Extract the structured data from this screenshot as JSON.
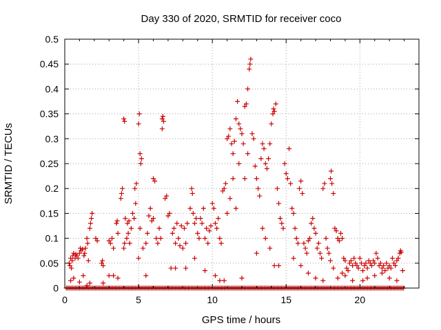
{
  "chart_data": {
    "type": "scatter",
    "title": "Day 330 of 2020, SRMTID for receiver coco",
    "xlabel": "GPS time / hours",
    "ylabel": "SRMTID / TECUs",
    "xlim": [
      0,
      24
    ],
    "ylim": [
      0,
      0.5
    ],
    "x_ticks": [
      0,
      5,
      10,
      15,
      20
    ],
    "y_ticks": [
      0,
      0.05,
      0.1,
      0.15,
      0.2,
      0.25,
      0.3,
      0.35,
      0.4,
      0.45,
      0.5
    ],
    "y_tick_labels": [
      "0",
      "0.05",
      "0.1",
      "0.15",
      "0.2",
      "0.25",
      "0.3",
      "0.35",
      "0.4",
      "0.45",
      "0.5"
    ],
    "grid": true,
    "marker": "+",
    "color": "#cc0000",
    "baseline": {
      "y": 0.0,
      "x_start": 0.1,
      "x_end": 23.0,
      "step": 0.09
    },
    "points": [
      [
        0.3,
        0.05
      ],
      [
        0.35,
        0.045
      ],
      [
        0.4,
        0.06
      ],
      [
        0.45,
        0.04
      ],
      [
        0.5,
        0.055
      ],
      [
        0.55,
        0.065
      ],
      [
        0.6,
        0.07
      ],
      [
        0.7,
        0.06
      ],
      [
        0.75,
        0.068
      ],
      [
        0.8,
        0.065
      ],
      [
        0.9,
        0.06
      ],
      [
        1.0,
        0.07
      ],
      [
        1.05,
        0.08
      ],
      [
        1.1,
        0.075
      ],
      [
        1.2,
        0.078
      ],
      [
        1.3,
        0.065
      ],
      [
        1.35,
        0.07
      ],
      [
        1.4,
        0.08
      ],
      [
        1.5,
        0.1
      ],
      [
        1.55,
        0.09
      ],
      [
        1.6,
        0.055
      ],
      [
        1.7,
        0.12
      ],
      [
        1.75,
        0.13
      ],
      [
        1.8,
        0.14
      ],
      [
        1.85,
        0.15
      ],
      [
        0.4,
        0.015
      ],
      [
        0.6,
        0.02
      ],
      [
        1.0,
        0.012
      ],
      [
        1.25,
        0.025
      ],
      [
        1.5,
        0.005
      ],
      [
        1.7,
        0.01
      ],
      [
        2.1,
        0.1
      ],
      [
        2.2,
        0.095
      ],
      [
        2.5,
        0.05
      ],
      [
        2.55,
        0.055
      ],
      [
        2.6,
        0.045
      ],
      [
        3.0,
        0.095
      ],
      [
        3.1,
        0.09
      ],
      [
        3.2,
        0.1
      ],
      [
        3.3,
        0.08
      ],
      [
        3.5,
        0.13
      ],
      [
        3.55,
        0.135
      ],
      [
        3.6,
        0.11
      ],
      [
        3.8,
        0.18
      ],
      [
        3.85,
        0.19
      ],
      [
        3.9,
        0.2
      ],
      [
        4.0,
        0.08
      ],
      [
        4.05,
        0.09
      ],
      [
        4.1,
        0.14
      ],
      [
        4.2,
        0.1
      ],
      [
        4.25,
        0.13
      ],
      [
        4.3,
        0.11
      ],
      [
        4.35,
        0.135
      ],
      [
        4.4,
        0.09
      ],
      [
        4.5,
        0.12
      ],
      [
        4.6,
        0.15
      ],
      [
        4.7,
        0.14
      ],
      [
        4.75,
        0.2
      ],
      [
        4.8,
        0.17
      ],
      [
        4.85,
        0.21
      ],
      [
        3.0,
        0.025
      ],
      [
        3.3,
        0.025
      ],
      [
        3.6,
        0.02
      ],
      [
        4.0,
        0.34
      ],
      [
        4.05,
        0.335
      ],
      [
        2.6,
        0.01
      ],
      [
        5.0,
        0.33
      ],
      [
        5.05,
        0.35
      ],
      [
        5.1,
        0.27
      ],
      [
        5.15,
        0.25
      ],
      [
        5.2,
        0.26
      ],
      [
        5.0,
        0.06
      ],
      [
        5.1,
        0.12
      ],
      [
        5.3,
        0.08
      ],
      [
        5.5,
        0.09
      ],
      [
        5.6,
        0.11
      ],
      [
        5.7,
        0.145
      ],
      [
        5.8,
        0.16
      ],
      [
        5.9,
        0.135
      ],
      [
        6.0,
        0.22
      ],
      [
        6.1,
        0.215
      ],
      [
        6.2,
        0.1
      ],
      [
        6.3,
        0.09
      ],
      [
        6.4,
        0.12
      ],
      [
        6.5,
        0.1
      ],
      [
        6.6,
        0.34
      ],
      [
        6.65,
        0.345
      ],
      [
        6.7,
        0.335
      ],
      [
        6.6,
        0.32
      ],
      [
        6.8,
        0.18
      ],
      [
        6.9,
        0.185
      ],
      [
        7.0,
        0.145
      ],
      [
        7.1,
        0.15
      ],
      [
        7.3,
        0.11
      ],
      [
        7.4,
        0.12
      ],
      [
        7.5,
        0.09
      ],
      [
        7.6,
        0.13
      ],
      [
        7.7,
        0.1
      ],
      [
        7.8,
        0.085
      ],
      [
        7.9,
        0.125
      ],
      [
        5.5,
        0.025
      ],
      [
        6.0,
        0.14
      ],
      [
        7.2,
        0.04
      ],
      [
        7.5,
        0.04
      ],
      [
        8.0,
        0.08
      ],
      [
        8.1,
        0.12
      ],
      [
        8.2,
        0.09
      ],
      [
        8.3,
        0.13
      ],
      [
        8.5,
        0.16
      ],
      [
        8.6,
        0.2
      ],
      [
        8.65,
        0.19
      ],
      [
        8.7,
        0.15
      ],
      [
        8.8,
        0.13
      ],
      [
        8.9,
        0.14
      ],
      [
        9.0,
        0.11
      ],
      [
        9.1,
        0.1
      ],
      [
        9.2,
        0.14
      ],
      [
        9.3,
        0.13
      ],
      [
        9.4,
        0.16
      ],
      [
        9.5,
        0.1
      ],
      [
        9.6,
        0.12
      ],
      [
        9.7,
        0.09
      ],
      [
        9.8,
        0.115
      ],
      [
        9.9,
        0.125
      ],
      [
        10.0,
        0.17
      ],
      [
        10.1,
        0.16
      ],
      [
        10.2,
        0.13
      ],
      [
        10.3,
        0.12
      ],
      [
        10.4,
        0.14
      ],
      [
        10.5,
        0.1
      ],
      [
        10.6,
        0.09
      ],
      [
        10.7,
        0.195
      ],
      [
        10.8,
        0.2
      ],
      [
        10.9,
        0.21
      ],
      [
        8.2,
        0.04
      ],
      [
        8.8,
        0.06
      ],
      [
        9.5,
        0.035
      ],
      [
        10.2,
        0.025
      ],
      [
        10.5,
        0.015
      ],
      [
        10.8,
        0.015
      ],
      [
        11.0,
        0.3
      ],
      [
        11.1,
        0.305
      ],
      [
        11.2,
        0.32
      ],
      [
        11.3,
        0.29
      ],
      [
        11.4,
        0.27
      ],
      [
        11.5,
        0.295
      ],
      [
        11.6,
        0.34
      ],
      [
        11.7,
        0.375
      ],
      [
        11.8,
        0.33
      ],
      [
        11.9,
        0.32
      ],
      [
        12.0,
        0.31
      ],
      [
        12.1,
        0.29
      ],
      [
        12.2,
        0.365
      ],
      [
        12.3,
        0.37
      ],
      [
        12.4,
        0.4
      ],
      [
        12.5,
        0.44
      ],
      [
        12.55,
        0.45
      ],
      [
        12.6,
        0.46
      ],
      [
        12.7,
        0.31
      ],
      [
        12.8,
        0.3
      ],
      [
        12.9,
        0.245
      ],
      [
        13.0,
        0.22
      ],
      [
        13.1,
        0.2
      ],
      [
        13.2,
        0.185
      ],
      [
        13.3,
        0.26
      ],
      [
        13.4,
        0.29
      ],
      [
        13.5,
        0.28
      ],
      [
        13.6,
        0.25
      ],
      [
        13.7,
        0.24
      ],
      [
        13.8,
        0.26
      ],
      [
        13.9,
        0.29
      ],
      [
        14.0,
        0.33
      ],
      [
        14.1,
        0.35
      ],
      [
        14.15,
        0.36
      ],
      [
        14.2,
        0.355
      ],
      [
        14.3,
        0.37
      ],
      [
        11.0,
        0.15
      ],
      [
        11.2,
        0.18
      ],
      [
        11.4,
        0.22
      ],
      [
        11.6,
        0.16
      ],
      [
        11.8,
        0.25
      ],
      [
        12.0,
        0.02
      ],
      [
        12.2,
        0.22
      ],
      [
        12.4,
        0.27
      ],
      [
        13.0,
        0.07
      ],
      [
        13.4,
        0.12
      ],
      [
        13.6,
        0.1
      ],
      [
        13.9,
        0.08
      ],
      [
        14.2,
        0.045
      ],
      [
        14.4,
        0.2
      ],
      [
        14.5,
        0.17
      ],
      [
        14.6,
        0.14
      ],
      [
        14.7,
        0.13
      ],
      [
        14.8,
        0.12
      ],
      [
        14.9,
        0.25
      ],
      [
        15.0,
        0.23
      ],
      [
        15.1,
        0.22
      ],
      [
        15.2,
        0.28
      ],
      [
        15.3,
        0.21
      ],
      [
        15.4,
        0.16
      ],
      [
        15.5,
        0.15
      ],
      [
        15.6,
        0.12
      ],
      [
        15.7,
        0.1
      ],
      [
        15.8,
        0.09
      ],
      [
        15.9,
        0.2
      ],
      [
        16.0,
        0.215
      ],
      [
        16.1,
        0.19
      ],
      [
        16.2,
        0.09
      ],
      [
        16.3,
        0.08
      ],
      [
        16.4,
        0.07
      ],
      [
        16.5,
        0.095
      ],
      [
        16.6,
        0.1
      ],
      [
        16.7,
        0.13
      ],
      [
        16.8,
        0.14
      ],
      [
        16.9,
        0.12
      ],
      [
        17.0,
        0.11
      ],
      [
        17.1,
        0.08
      ],
      [
        17.2,
        0.09
      ],
      [
        17.3,
        0.07
      ],
      [
        17.4,
        0.06
      ],
      [
        17.5,
        0.2
      ],
      [
        17.6,
        0.21
      ],
      [
        17.7,
        0.1
      ],
      [
        17.8,
        0.08
      ],
      [
        17.9,
        0.07
      ],
      [
        14.5,
        0.045
      ],
      [
        15.5,
        0.06
      ],
      [
        16.0,
        0.045
      ],
      [
        16.5,
        0.03
      ],
      [
        17.0,
        0.02
      ],
      [
        17.5,
        0.015
      ],
      [
        18.0,
        0.22
      ],
      [
        18.05,
        0.235
      ],
      [
        18.1,
        0.21
      ],
      [
        18.2,
        0.19
      ],
      [
        18.3,
        0.12
      ],
      [
        18.4,
        0.115
      ],
      [
        18.5,
        0.1
      ],
      [
        18.6,
        0.095
      ],
      [
        18.7,
        0.11
      ],
      [
        18.8,
        0.1
      ],
      [
        18.9,
        0.06
      ],
      [
        19.0,
        0.055
      ],
      [
        19.1,
        0.04
      ],
      [
        19.2,
        0.035
      ],
      [
        19.3,
        0.05
      ],
      [
        19.4,
        0.055
      ],
      [
        19.5,
        0.045
      ],
      [
        19.6,
        0.06
      ],
      [
        19.7,
        0.05
      ],
      [
        19.8,
        0.045
      ],
      [
        19.9,
        0.04
      ],
      [
        18.0,
        0.055
      ],
      [
        18.2,
        0.04
      ],
      [
        18.5,
        0.02
      ],
      [
        18.8,
        0.03
      ],
      [
        19.0,
        0.025
      ],
      [
        19.5,
        0.015
      ],
      [
        20.0,
        0.06
      ],
      [
        20.1,
        0.05
      ],
      [
        20.2,
        0.035
      ],
      [
        20.3,
        0.045
      ],
      [
        20.4,
        0.05
      ],
      [
        20.5,
        0.04
      ],
      [
        20.6,
        0.055
      ],
      [
        20.7,
        0.05
      ],
      [
        20.8,
        0.045
      ],
      [
        20.9,
        0.055
      ],
      [
        21.0,
        0.05
      ],
      [
        21.1,
        0.07
      ],
      [
        21.2,
        0.06
      ],
      [
        21.3,
        0.045
      ],
      [
        21.4,
        0.05
      ],
      [
        21.5,
        0.04
      ],
      [
        21.6,
        0.045
      ],
      [
        21.7,
        0.035
      ],
      [
        21.8,
        0.05
      ],
      [
        21.9,
        0.04
      ],
      [
        22.0,
        0.045
      ],
      [
        22.1,
        0.04
      ],
      [
        22.2,
        0.06
      ],
      [
        22.3,
        0.05
      ],
      [
        22.4,
        0.045
      ],
      [
        22.5,
        0.055
      ],
      [
        22.6,
        0.06
      ],
      [
        22.7,
        0.07
      ],
      [
        22.75,
        0.075
      ],
      [
        22.8,
        0.072
      ],
      [
        20.2,
        0.015
      ],
      [
        20.5,
        0.02
      ],
      [
        21.0,
        0.025
      ],
      [
        21.5,
        0.03
      ],
      [
        22.0,
        0.02
      ],
      [
        22.5,
        0.015
      ],
      [
        22.9,
        0.035
      ]
    ]
  }
}
